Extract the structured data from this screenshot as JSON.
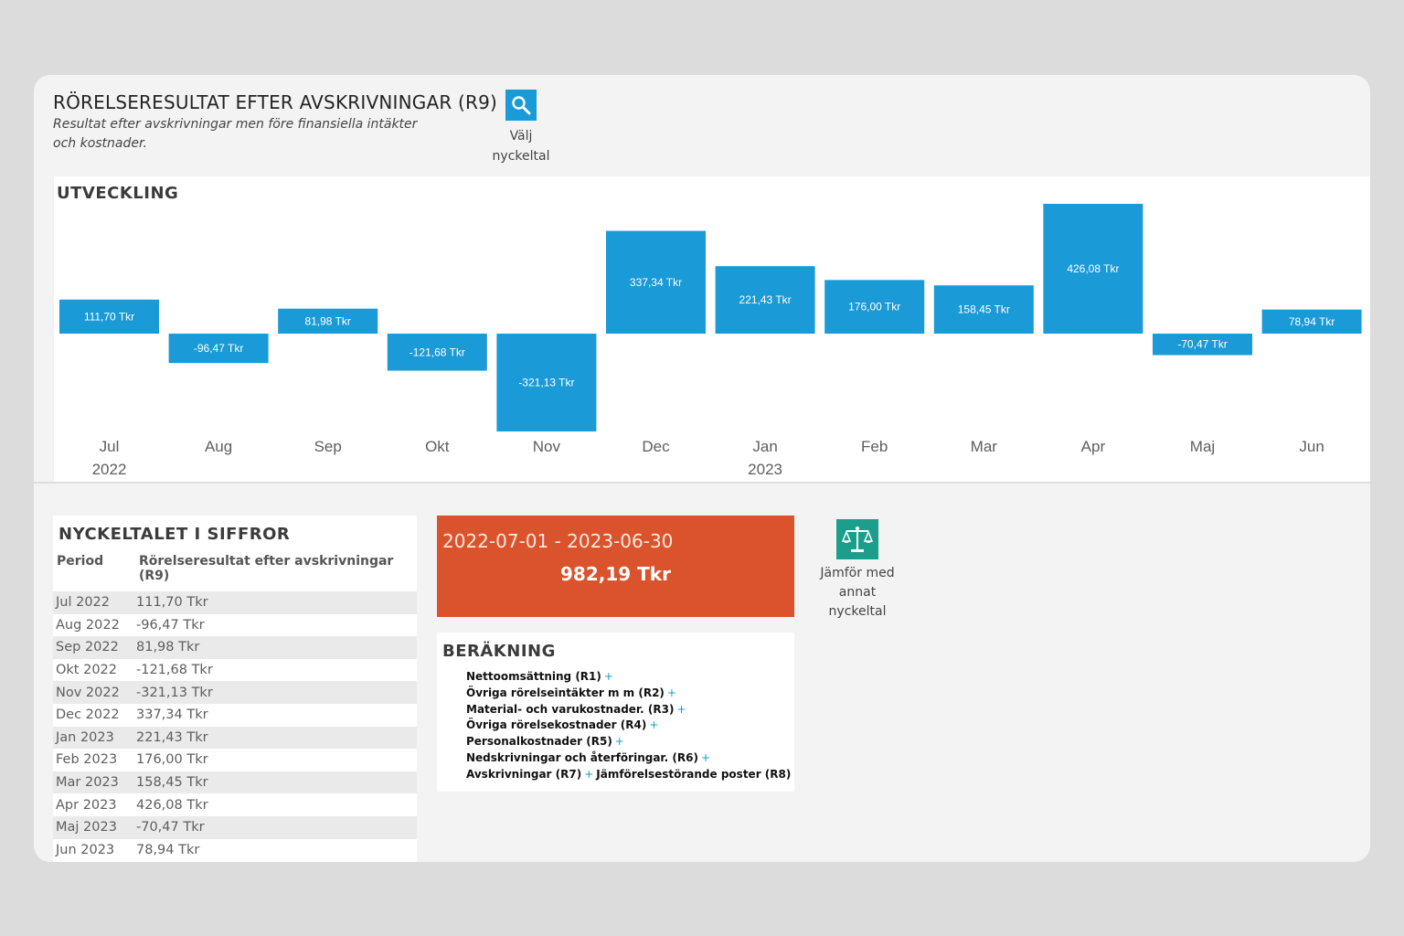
{
  "header": {
    "title": "RÖRELSERESULTAT EFTER AVSKRIVNINGAR (R9)",
    "subtitle": "Resultat efter avskrivningar men före finansiella intäkter och kostnader.",
    "select_kpi_label_1": "Välj",
    "select_kpi_label_2": "nyckeltal",
    "select_kpi_icon": "search-icon"
  },
  "development": {
    "title": "UTVECKLING"
  },
  "chart_data": {
    "type": "bar",
    "title": "UTVECKLING",
    "categories": [
      "Jul",
      "Aug",
      "Sep",
      "Okt",
      "Nov",
      "Dec",
      "Jan",
      "Feb",
      "Mar",
      "Apr",
      "Maj",
      "Jun"
    ],
    "year_labels": [
      {
        "index": 0,
        "label": "2022"
      },
      {
        "index": 6,
        "label": "2023"
      }
    ],
    "values": [
      111.7,
      -96.47,
      81.98,
      -121.68,
      -321.13,
      337.34,
      221.43,
      176.0,
      158.45,
      426.08,
      -70.47,
      78.94
    ],
    "value_labels": [
      "111,70 Tkr",
      "-96,47 Tkr",
      "81,98 Tkr",
      "-121,68 Tkr",
      "-321,13 Tkr",
      "337,34 Tkr",
      "221,43 Tkr",
      "176,00 Tkr",
      "158,45 Tkr",
      "426,08 Tkr",
      "-70,47 Tkr",
      "78,94 Tkr"
    ],
    "unit": "Tkr",
    "bar_color": "#1a9ad6",
    "grid": false
  },
  "table": {
    "title": "NYCKELTALET I SIFFROR",
    "col_period": "Period",
    "col_value": "Rörelseresultat efter avskrivningar (R9)",
    "rows": [
      {
        "period": "Jul 2022",
        "value": "111,70 Tkr"
      },
      {
        "period": "Aug 2022",
        "value": "-96,47 Tkr"
      },
      {
        "period": "Sep 2022",
        "value": "81,98 Tkr"
      },
      {
        "period": "Okt 2022",
        "value": "-121,68 Tkr"
      },
      {
        "period": "Nov 2022",
        "value": "-321,13 Tkr"
      },
      {
        "period": "Dec 2022",
        "value": "337,34 Tkr"
      },
      {
        "period": "Jan 2023",
        "value": "221,43 Tkr"
      },
      {
        "period": "Feb 2023",
        "value": "176,00 Tkr"
      },
      {
        "period": "Mar 2023",
        "value": "158,45 Tkr"
      },
      {
        "period": "Apr 2023",
        "value": "426,08 Tkr"
      },
      {
        "period": "Maj 2023",
        "value": "-70,47 Tkr"
      },
      {
        "period": "Jun 2023",
        "value": "78,94 Tkr"
      }
    ]
  },
  "kpi": {
    "range": "2022-07-01 - 2023-06-30",
    "value": "982,19 Tkr",
    "color": "#db532c"
  },
  "calculation": {
    "title": "BERÄKNING",
    "lines": [
      "Nettoomsättning (R1)",
      "Övriga rörelseintäkter m m (R2)",
      "Material- och varukostnader. (R3)",
      "Övriga rörelsekostnader (R4)",
      "Personalkostnader (R5)",
      "Nedskrivningar och återföringar. (R6)",
      "Avskrivningar (R7)"
    ],
    "last_extra": "Jämförelsestörande poster (R8)",
    "plus": "+"
  },
  "compare": {
    "label_1": "Jämför med",
    "label_2": "annat nyckeltal",
    "icon": "scale-icon"
  }
}
